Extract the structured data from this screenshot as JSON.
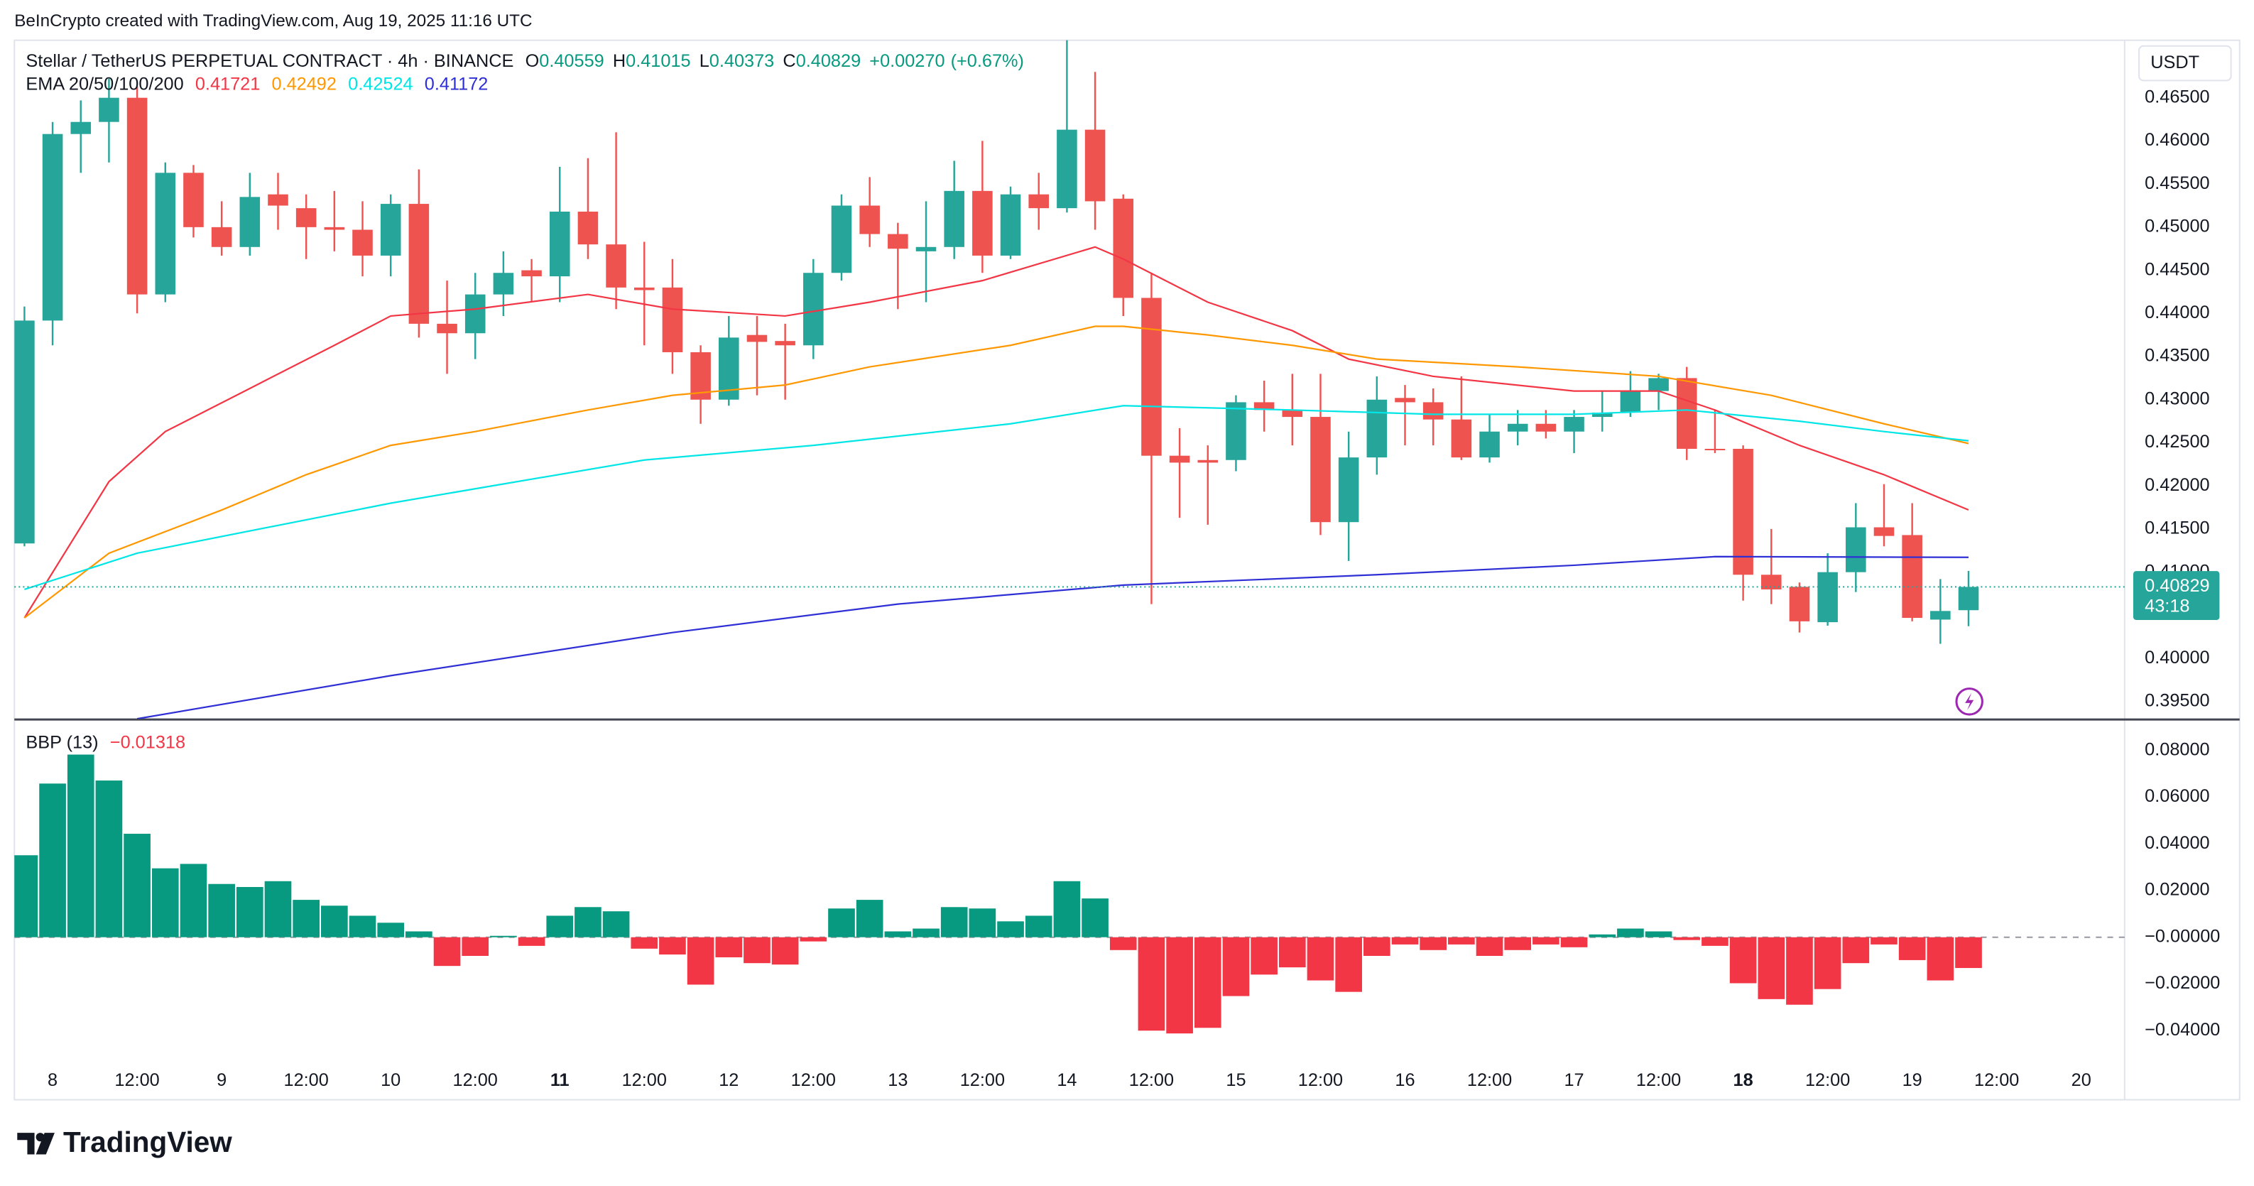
{
  "attribution": "BeInCrypto created with TradingView.com, Aug 19, 2025 11:16 UTC",
  "footer": "TradingView",
  "chart_data": [
    {
      "type": "candlestick",
      "title": "Stellar / TetherUS PERPETUAL CONTRACT · 4h · BINANCE",
      "ohlc_letters": [
        "O",
        "H",
        "L",
        "C"
      ],
      "change": "+0.00270",
      "change_pct": "(+0.67%)",
      "currency": "USDT",
      "countdown": "43:18",
      "ema_label": "EMA 20/50/100/200",
      "up_color": "#26a69a",
      "down_color": "#ef5350",
      "open": [
        0.41333,
        0.43917,
        0.4608,
        0.4622,
        0.465,
        0.4422,
        0.4563,
        0.45,
        0.4477,
        0.4538,
        0.4522,
        0.45,
        0.4497,
        0.4467,
        0.4527,
        0.4388,
        0.4377,
        0.4422,
        0.445,
        0.4443,
        0.4518,
        0.448,
        0.443,
        0.443,
        0.4355,
        0.43,
        0.4375,
        0.4368,
        0.4363,
        0.4447,
        0.4525,
        0.4492,
        0.4472,
        0.4477,
        0.4542,
        0.4467,
        0.4538,
        0.4522,
        0.4613,
        0.4533,
        0.4418,
        0.4235,
        0.423,
        0.423,
        0.4297,
        0.4288,
        0.428,
        0.4158,
        0.4233,
        0.4302,
        0.4297,
        0.4277,
        0.4233,
        0.4263,
        0.4272,
        0.4263,
        0.428,
        0.4285,
        0.431,
        0.4325,
        0.4243,
        0.4243,
        0.4097,
        0.4083,
        0.4042,
        0.41,
        0.4152,
        0.4143,
        0.4045,
        0.40559
      ],
      "high": [
        0.4408,
        0.4622,
        0.4647,
        0.4672,
        0.4663,
        0.4575,
        0.4572,
        0.453,
        0.4563,
        0.4563,
        0.4538,
        0.4542,
        0.453,
        0.4538,
        0.4567,
        0.4438,
        0.4447,
        0.4472,
        0.4463,
        0.457,
        0.458,
        0.461,
        0.4483,
        0.4463,
        0.4363,
        0.4397,
        0.4397,
        0.4388,
        0.4463,
        0.4538,
        0.4558,
        0.4505,
        0.453,
        0.4577,
        0.46,
        0.4547,
        0.4563,
        0.472,
        0.468,
        0.4538,
        0.4447,
        0.4267,
        0.4247,
        0.4305,
        0.4322,
        0.433,
        0.433,
        0.4263,
        0.4327,
        0.4317,
        0.4313,
        0.4327,
        0.4283,
        0.4288,
        0.4288,
        0.4288,
        0.431,
        0.4333,
        0.433,
        0.4338,
        0.4288,
        0.4247,
        0.415,
        0.4088,
        0.4122,
        0.418,
        0.4202,
        0.418,
        0.4092,
        0.41015
      ],
      "low": [
        0.413,
        0.4363,
        0.4563,
        0.4575,
        0.44,
        0.4413,
        0.4488,
        0.4467,
        0.4467,
        0.4497,
        0.4463,
        0.4472,
        0.4443,
        0.4443,
        0.4372,
        0.433,
        0.4347,
        0.4397,
        0.4413,
        0.4413,
        0.4463,
        0.4405,
        0.4363,
        0.433,
        0.4272,
        0.4293,
        0.4305,
        0.43,
        0.4347,
        0.4438,
        0.4477,
        0.4405,
        0.4413,
        0.4463,
        0.4447,
        0.4463,
        0.4497,
        0.4517,
        0.4497,
        0.4397,
        0.4063,
        0.4163,
        0.4155,
        0.4217,
        0.4263,
        0.4247,
        0.4143,
        0.4113,
        0.4213,
        0.4247,
        0.4247,
        0.423,
        0.4227,
        0.4247,
        0.4255,
        0.4238,
        0.4263,
        0.428,
        0.4288,
        0.423,
        0.4238,
        0.4067,
        0.4063,
        0.403,
        0.4038,
        0.4077,
        0.413,
        0.4043,
        0.4017,
        0.40373
      ],
      "close": [
        0.43917,
        0.4608,
        0.4622,
        0.465,
        0.4422,
        0.4563,
        0.45,
        0.4477,
        0.4535,
        0.4525,
        0.45,
        0.4497,
        0.4467,
        0.4527,
        0.4388,
        0.4377,
        0.4422,
        0.4447,
        0.4443,
        0.4518,
        0.448,
        0.443,
        0.4427,
        0.4355,
        0.43,
        0.4372,
        0.4367,
        0.4363,
        0.4447,
        0.4525,
        0.4492,
        0.4475,
        0.4477,
        0.4542,
        0.4467,
        0.4538,
        0.4522,
        0.4613,
        0.453,
        0.4418,
        0.4235,
        0.4227,
        0.4227,
        0.4297,
        0.4288,
        0.428,
        0.4158,
        0.4233,
        0.43,
        0.4297,
        0.4277,
        0.4233,
        0.4263,
        0.4272,
        0.4263,
        0.428,
        0.4285,
        0.431,
        0.4325,
        0.4243,
        0.4242,
        0.4097,
        0.408,
        0.4043,
        0.41,
        0.4152,
        0.4142,
        0.4047,
        0.4055,
        0.40829
      ],
      "series": [
        {
          "name": "EMA 20",
          "color": "#f23645",
          "x": [
            0,
            3,
            5,
            8,
            11,
            13,
            16,
            20,
            23,
            27,
            30,
            34,
            38,
            39,
            42,
            45,
            47,
            50,
            55,
            58,
            60,
            63,
            66,
            69
          ],
          "values": [
            0.4047,
            0.4205,
            0.4263,
            0.4313,
            0.4363,
            0.4397,
            0.4405,
            0.4422,
            0.4405,
            0.4397,
            0.4413,
            0.4438,
            0.4477,
            0.4463,
            0.4413,
            0.438,
            0.4347,
            0.4327,
            0.431,
            0.431,
            0.4288,
            0.4247,
            0.4213,
            0.41721
          ]
        },
        {
          "name": "EMA 50",
          "color": "#ff9800",
          "x": [
            0,
            3,
            7,
            10,
            13,
            16,
            20,
            23,
            27,
            30,
            35,
            38,
            39,
            42,
            45,
            48,
            53,
            58,
            62,
            66,
            69
          ],
          "values": [
            0.4047,
            0.4122,
            0.4172,
            0.4213,
            0.4247,
            0.4263,
            0.4288,
            0.4305,
            0.4317,
            0.4338,
            0.4363,
            0.4385,
            0.4385,
            0.4375,
            0.4363,
            0.4347,
            0.4338,
            0.4327,
            0.4305,
            0.4272,
            0.42492
          ]
        },
        {
          "name": "EMA 100",
          "color": "#00e5e5",
          "x": [
            0,
            4,
            13,
            22,
            28,
            35,
            39,
            45,
            50,
            55,
            59,
            63,
            66,
            69
          ],
          "values": [
            0.408,
            0.4122,
            0.418,
            0.423,
            0.4247,
            0.4272,
            0.4293,
            0.4288,
            0.4283,
            0.4283,
            0.4288,
            0.4275,
            0.4263,
            0.42524
          ]
        },
        {
          "name": "EMA 200",
          "color": "#2f2fd6",
          "x": [
            4,
            13,
            23,
            31,
            39,
            48,
            55,
            60,
            69
          ],
          "values": [
            0.393,
            0.398,
            0.403,
            0.4063,
            0.4085,
            0.4097,
            0.4108,
            0.4118,
            0.41172
          ]
        }
      ],
      "ylim": [
        0.393,
        0.47167
      ],
      "yticks": [
        {
          "value": 0.395,
          "label": "0.39500"
        },
        {
          "value": 0.4,
          "label": "0.40000"
        },
        {
          "value": 0.405,
          "label": "0.40500"
        },
        {
          "value": 0.41,
          "label": "0.41000"
        },
        {
          "value": 0.415,
          "label": "0.41500"
        },
        {
          "value": 0.42,
          "label": "0.42000"
        },
        {
          "value": 0.425,
          "label": "0.42500"
        },
        {
          "value": 0.43,
          "label": "0.43000"
        },
        {
          "value": 0.435,
          "label": "0.43500"
        },
        {
          "value": 0.44,
          "label": "0.44000"
        },
        {
          "value": 0.445,
          "label": "0.44500"
        },
        {
          "value": 0.45,
          "label": "0.45000"
        },
        {
          "value": 0.455,
          "label": "0.45500"
        },
        {
          "value": 0.46,
          "label": "0.46000"
        },
        {
          "value": 0.465,
          "label": "0.46500"
        }
      ],
      "xlim": [
        -0.357,
        74.54
      ],
      "xticks": [
        {
          "value": 1,
          "label": "8"
        },
        {
          "value": 4,
          "label": "12:00"
        },
        {
          "value": 7,
          "label": "9"
        },
        {
          "value": 10,
          "label": "12:00"
        },
        {
          "value": 13,
          "label": "10"
        },
        {
          "value": 16,
          "label": "12:00"
        },
        {
          "value": 19,
          "label": "11",
          "bold": true
        },
        {
          "value": 22,
          "label": "12:00"
        },
        {
          "value": 25,
          "label": "12"
        },
        {
          "value": 28,
          "label": "12:00"
        },
        {
          "value": 31,
          "label": "13"
        },
        {
          "value": 34,
          "label": "12:00"
        },
        {
          "value": 37,
          "label": "14"
        },
        {
          "value": 40,
          "label": "12:00"
        },
        {
          "value": 43,
          "label": "15"
        },
        {
          "value": 46,
          "label": "12:00"
        },
        {
          "value": 49,
          "label": "16"
        },
        {
          "value": 52,
          "label": "12:00"
        },
        {
          "value": 55,
          "label": "17"
        },
        {
          "value": 58,
          "label": "12:00"
        },
        {
          "value": 61,
          "label": "18",
          "bold": true
        },
        {
          "value": 64,
          "label": "12:00"
        },
        {
          "value": 67,
          "label": "19"
        },
        {
          "value": 70,
          "label": "12:00"
        },
        {
          "value": 73,
          "label": "20"
        }
      ]
    },
    {
      "type": "bar",
      "title": "BBP (13)",
      "legend_value": "−0.01318",
      "up_color": "#089981",
      "down_color": "#f23645",
      "values": [
        0.0351,
        0.0658,
        0.0782,
        0.0671,
        0.0443,
        0.0295,
        0.0314,
        0.0228,
        0.0215,
        0.024,
        0.016,
        0.0135,
        0.0092,
        0.0062,
        0.0025,
        -0.0123,
        -0.008,
        0.0006,
        -0.0037,
        0.0092,
        0.0129,
        0.0111,
        -0.0049,
        -0.0074,
        -0.0203,
        -0.0086,
        -0.0111,
        -0.0117,
        -0.0018,
        0.0123,
        0.016,
        0.0025,
        0.0037,
        0.0129,
        0.0123,
        0.0068,
        0.0092,
        0.024,
        0.0166,
        -0.0055,
        -0.04,
        -0.0412,
        -0.0388,
        -0.0252,
        -0.016,
        -0.0129,
        -0.0185,
        -0.0234,
        -0.008,
        -0.0031,
        -0.0055,
        -0.0031,
        -0.008,
        -0.0055,
        -0.0031,
        -0.0043,
        0.0012,
        0.0037,
        0.0025,
        -0.0012,
        -0.0037,
        -0.0197,
        -0.0265,
        -0.0289,
        -0.0222,
        -0.0111,
        -0.0031,
        -0.0098,
        -0.0185,
        -0.01318
      ],
      "ylim": [
        -0.0542,
        0.0923
      ],
      "yticks": [
        {
          "value": 0.08,
          "label": "0.08000"
        },
        {
          "value": 0.06,
          "label": "0.06000"
        },
        {
          "value": 0.04,
          "label": "0.04000"
        },
        {
          "value": 0.02,
          "label": "0.02000"
        },
        {
          "value": 0,
          "label": "−0.00000"
        },
        {
          "value": -0.02,
          "label": "−0.02000"
        },
        {
          "value": -0.04,
          "label": "−0.04000"
        }
      ]
    }
  ]
}
